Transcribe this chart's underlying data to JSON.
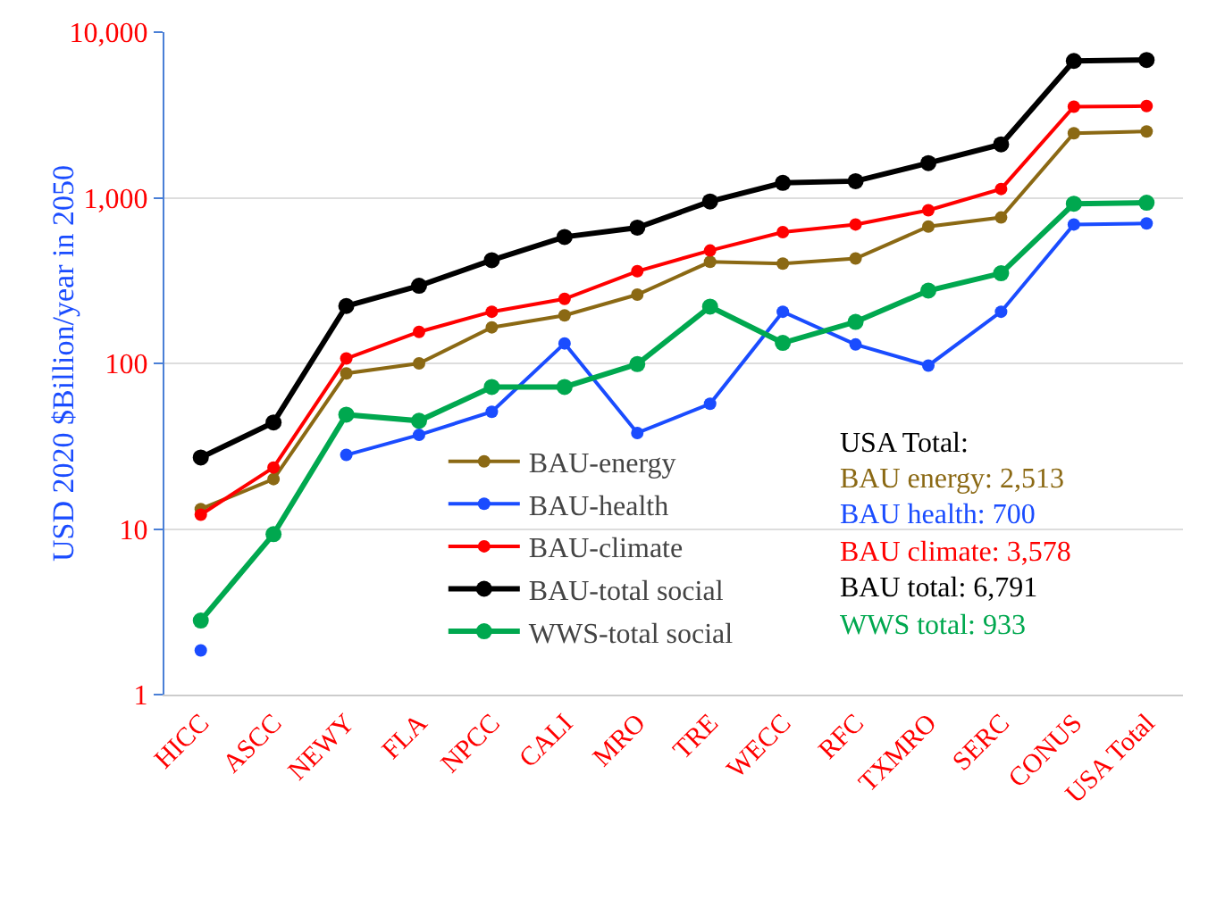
{
  "chart_data": {
    "type": "line",
    "ylabel": "USD 2020 $Billion/year in 2050",
    "log": true,
    "grid": "y",
    "legend": "bottom left",
    "marker": "circle",
    "line_style": "solid",
    "categories": [
      "HICC",
      "ASCC",
      "NEWY",
      "FLA",
      "NPCC",
      "CALI",
      "MRO",
      "TRE",
      "WECC",
      "RFC",
      "TXMRO",
      "SERC",
      "CONUS",
      "USA Total"
    ],
    "ylim": [
      1,
      10000
    ],
    "yticks": [
      1,
      10,
      100,
      {
        "value": 1000,
        "label": "1,000"
      },
      {
        "value": 10000,
        "label": "10,000"
      }
    ],
    "series": [
      {
        "name": "BAU-energy",
        "color": "#8b6914",
        "values": [
          13.2,
          20,
          87,
          100,
          165,
          195,
          260,
          410,
          400,
          430,
          670,
          760,
          2450,
          2513
        ]
      },
      {
        "name": "BAU-health",
        "color": "#1a4cff",
        "values": [
          1.85,
          null,
          28,
          37,
          51,
          132,
          38,
          57,
          205,
          130,
          97,
          205,
          690,
          700
        ]
      },
      {
        "name": "BAU-climate",
        "color": "#ff0000",
        "values": [
          12.2,
          23.5,
          107,
          155,
          205,
          245,
          360,
          480,
          620,
          690,
          840,
          1130,
          3550,
          3578
        ]
      },
      {
        "name": "BAU-total social",
        "color": "#000000",
        "values": [
          27,
          44,
          222,
          294,
          420,
          580,
          660,
          950,
          1230,
          1260,
          1620,
          2100,
          6700,
          6791
        ]
      },
      {
        "name": "WWS-total social",
        "color": "#00a84f",
        "values": [
          2.8,
          9.3,
          49,
          45,
          72,
          72,
          99,
          220,
          133,
          178,
          275,
          350,
          920,
          933
        ]
      }
    ],
    "annotations": [
      "USA Total:",
      "BAU energy: 2,513",
      "BAU health: 700",
      "BAU climate: 3,578",
      "BAU total: 6,791",
      "WWS total: 933"
    ]
  }
}
